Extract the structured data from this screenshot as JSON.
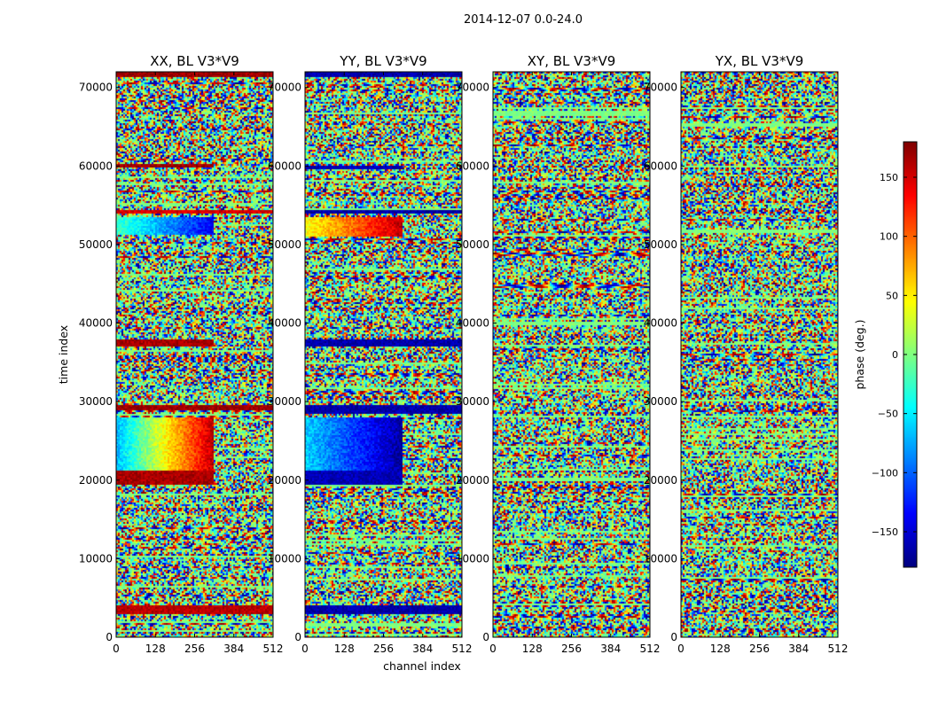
{
  "figure": {
    "suptitle": "2014-12-07 0.0-24.0",
    "xlabel": "channel index",
    "ylabel": "time index",
    "colorbar_label": "phase (deg.)"
  },
  "colorbar": {
    "vmin": -180,
    "vmax": 180,
    "ticks": [
      -150,
      -100,
      -50,
      0,
      50,
      100,
      150
    ],
    "tick_labels": [
      "−150",
      "−100",
      "−50",
      "0",
      "50",
      "100",
      "150"
    ],
    "colormap": "jet",
    "colors": [
      "#00007f",
      "#0000ff",
      "#007fff",
      "#00ffff",
      "#7fff7f",
      "#ffff00",
      "#ff7f00",
      "#ff0000",
      "#7f0000"
    ]
  },
  "chart_data": [
    {
      "type": "heatmap",
      "title": "XX, BL V3*V9",
      "xlabel": "channel index",
      "ylabel": "time index",
      "xlim": [
        0,
        512
      ],
      "ylim": [
        0,
        72000
      ],
      "xticks": [
        0,
        128,
        256,
        384,
        512
      ],
      "yticks": [
        0,
        10000,
        20000,
        30000,
        40000,
        50000,
        60000,
        70000
      ],
      "value": "phase (deg.)",
      "features": [
        {
          "t0": 19500,
          "t1": 21200,
          "c0": 0,
          "c1": 320,
          "phase": 165
        },
        {
          "t0": 21200,
          "t1": 28000,
          "c0": 0,
          "c1": 320,
          "phase_start": -70,
          "phase_end": 160
        },
        {
          "t0": 29000,
          "t1": 29500,
          "c0": 0,
          "c1": 512,
          "phase": 170
        },
        {
          "t0": 37000,
          "t1": 38000,
          "c0": 0,
          "c1": 320,
          "phase": 165
        },
        {
          "t0": 51200,
          "t1": 53500,
          "c0": 0,
          "c1": 320,
          "phase_start": -20,
          "phase_end": -140
        },
        {
          "t0": 54000,
          "t1": 54500,
          "c0": 0,
          "c1": 512,
          "phase": 150
        },
        {
          "t0": 59800,
          "t1": 60200,
          "c0": 0,
          "c1": 320,
          "phase": 170
        },
        {
          "t0": 71300,
          "t1": 72000,
          "c0": 0,
          "c1": 512,
          "phase": 170
        },
        {
          "t0": 3000,
          "t1": 4000,
          "c0": 0,
          "c1": 512,
          "phase": 160
        }
      ]
    },
    {
      "type": "heatmap",
      "title": "YY, BL V3*V9",
      "xlabel": "channel index",
      "ylabel": "time index",
      "xlim": [
        0,
        512
      ],
      "ylim": [
        0,
        72000
      ],
      "xticks": [
        0,
        128,
        256,
        384,
        512
      ],
      "yticks": [
        0,
        10000,
        20000,
        30000,
        40000,
        50000,
        60000,
        70000
      ],
      "value": "phase (deg.)",
      "features": [
        {
          "t0": 19500,
          "t1": 21200,
          "c0": 0,
          "c1": 320,
          "phase": -160
        },
        {
          "t0": 21200,
          "t1": 28000,
          "c0": 0,
          "c1": 320,
          "phase_start": -60,
          "phase_end": -170
        },
        {
          "t0": 28500,
          "t1": 29500,
          "c0": 0,
          "c1": 512,
          "phase": -165
        },
        {
          "t0": 37000,
          "t1": 38000,
          "c0": 0,
          "c1": 512,
          "phase": -165
        },
        {
          "t0": 51000,
          "t1": 53500,
          "c0": 0,
          "c1": 320,
          "phase_start": 40,
          "phase_end": 160
        },
        {
          "t0": 54000,
          "t1": 54500,
          "c0": 0,
          "c1": 512,
          "phase": -165
        },
        {
          "t0": 59500,
          "t1": 60000,
          "c0": 0,
          "c1": 320,
          "phase": -160
        },
        {
          "t0": 71300,
          "t1": 72000,
          "c0": 0,
          "c1": 512,
          "phase": -165
        },
        {
          "t0": 3000,
          "t1": 4000,
          "c0": 0,
          "c1": 512,
          "phase": -165
        }
      ]
    },
    {
      "type": "heatmap",
      "title": "XY, BL V3*V9",
      "xlabel": "channel index",
      "ylabel": "time index",
      "xlim": [
        0,
        512
      ],
      "ylim": [
        0,
        72000
      ],
      "xticks": [
        0,
        128,
        256,
        384,
        512
      ],
      "yticks": [
        0,
        10000,
        20000,
        30000,
        40000,
        50000,
        60000,
        70000
      ],
      "value": "phase (deg.)",
      "features": []
    },
    {
      "type": "heatmap",
      "title": "YX, BL V3*V9",
      "xlabel": "channel index",
      "ylabel": "time index",
      "xlim": [
        0,
        512
      ],
      "ylim": [
        0,
        72000
      ],
      "xticks": [
        0,
        128,
        256,
        384,
        512
      ],
      "yticks": [
        0,
        10000,
        20000,
        30000,
        40000,
        50000,
        60000,
        70000
      ],
      "value": "phase (deg.)",
      "features": []
    }
  ]
}
